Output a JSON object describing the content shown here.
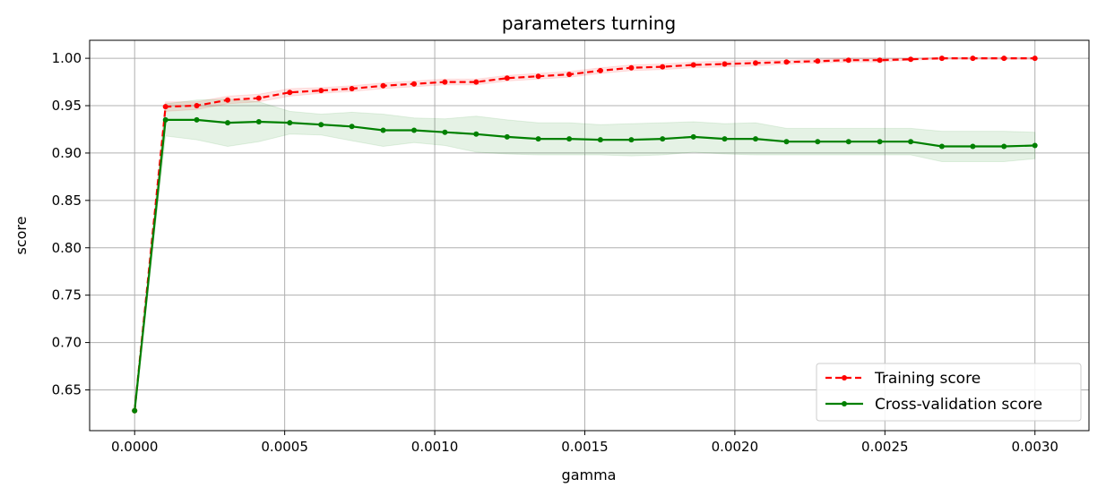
{
  "chart_data": {
    "type": "line",
    "title": "parameters turning",
    "xlabel": "gamma",
    "ylabel": "score",
    "xlim": [
      -0.00015,
      0.00318
    ],
    "ylim": [
      0.607,
      1.019
    ],
    "xticks": [
      0.0,
      0.0005,
      0.001,
      0.0015,
      0.002,
      0.0025,
      0.003
    ],
    "xtick_labels": [
      "0.0000",
      "0.0005",
      "0.0010",
      "0.0015",
      "0.0020",
      "0.0025",
      "0.0030"
    ],
    "yticks": [
      0.65,
      0.7,
      0.75,
      0.8,
      0.85,
      0.9,
      0.95,
      1.0
    ],
    "ytick_labels": [
      "0.65",
      "0.70",
      "0.75",
      "0.80",
      "0.85",
      "0.90",
      "0.95",
      "1.00"
    ],
    "grid": true,
    "legend_position": "bottom-right",
    "x": [
      0.0,
      0.000103,
      0.000207,
      0.00031,
      0.000414,
      0.000517,
      0.000621,
      0.000724,
      0.000828,
      0.000931,
      0.001034,
      0.001138,
      0.001241,
      0.001345,
      0.001448,
      0.001552,
      0.001655,
      0.001759,
      0.001862,
      0.001966,
      0.002069,
      0.002172,
      0.002276,
      0.002379,
      0.002483,
      0.002586,
      0.00269,
      0.002793,
      0.002897,
      0.003
    ],
    "series": [
      {
        "name": "Training score",
        "color": "#ff0000",
        "linestyle": "dashed",
        "values": [
          0.628,
          0.949,
          0.95,
          0.956,
          0.958,
          0.964,
          0.966,
          0.968,
          0.971,
          0.973,
          0.975,
          0.975,
          0.979,
          0.981,
          0.983,
          0.987,
          0.99,
          0.991,
          0.993,
          0.994,
          0.995,
          0.996,
          0.997,
          0.998,
          0.998,
          0.999,
          1.0,
          1.0,
          1.0,
          1.0
        ],
        "band_low": [
          0.626,
          0.944,
          0.946,
          0.952,
          0.954,
          0.96,
          0.963,
          0.965,
          0.968,
          0.97,
          0.972,
          0.972,
          0.976,
          0.978,
          0.98,
          0.984,
          0.987,
          0.988,
          0.99,
          0.991,
          0.992,
          0.994,
          0.995,
          0.996,
          0.996,
          0.998,
          0.999,
          0.999,
          0.999,
          0.999
        ],
        "band_high": [
          0.63,
          0.954,
          0.954,
          0.96,
          0.962,
          0.968,
          0.969,
          0.971,
          0.974,
          0.976,
          0.978,
          0.978,
          0.982,
          0.984,
          0.986,
          0.99,
          0.993,
          0.994,
          0.996,
          0.997,
          0.998,
          0.998,
          0.999,
          1.0,
          1.0,
          1.0,
          1.001,
          1.001,
          1.001,
          1.001
        ]
      },
      {
        "name": "Cross-validation score",
        "color": "#008000",
        "linestyle": "solid",
        "values": [
          0.628,
          0.935,
          0.935,
          0.932,
          0.933,
          0.932,
          0.93,
          0.928,
          0.924,
          0.924,
          0.922,
          0.92,
          0.917,
          0.915,
          0.915,
          0.914,
          0.914,
          0.915,
          0.917,
          0.915,
          0.915,
          0.912,
          0.912,
          0.912,
          0.912,
          0.912,
          0.907,
          0.907,
          0.907,
          0.908
        ],
        "band_low": [
          0.626,
          0.918,
          0.914,
          0.907,
          0.912,
          0.92,
          0.919,
          0.913,
          0.907,
          0.911,
          0.908,
          0.901,
          0.899,
          0.898,
          0.898,
          0.898,
          0.897,
          0.898,
          0.901,
          0.899,
          0.898,
          0.898,
          0.898,
          0.898,
          0.898,
          0.898,
          0.891,
          0.891,
          0.891,
          0.894
        ],
        "band_high": [
          0.63,
          0.952,
          0.956,
          0.957,
          0.954,
          0.944,
          0.941,
          0.943,
          0.941,
          0.937,
          0.936,
          0.939,
          0.935,
          0.932,
          0.932,
          0.93,
          0.931,
          0.932,
          0.933,
          0.931,
          0.932,
          0.926,
          0.926,
          0.926,
          0.926,
          0.926,
          0.923,
          0.923,
          0.923,
          0.922
        ]
      }
    ]
  }
}
